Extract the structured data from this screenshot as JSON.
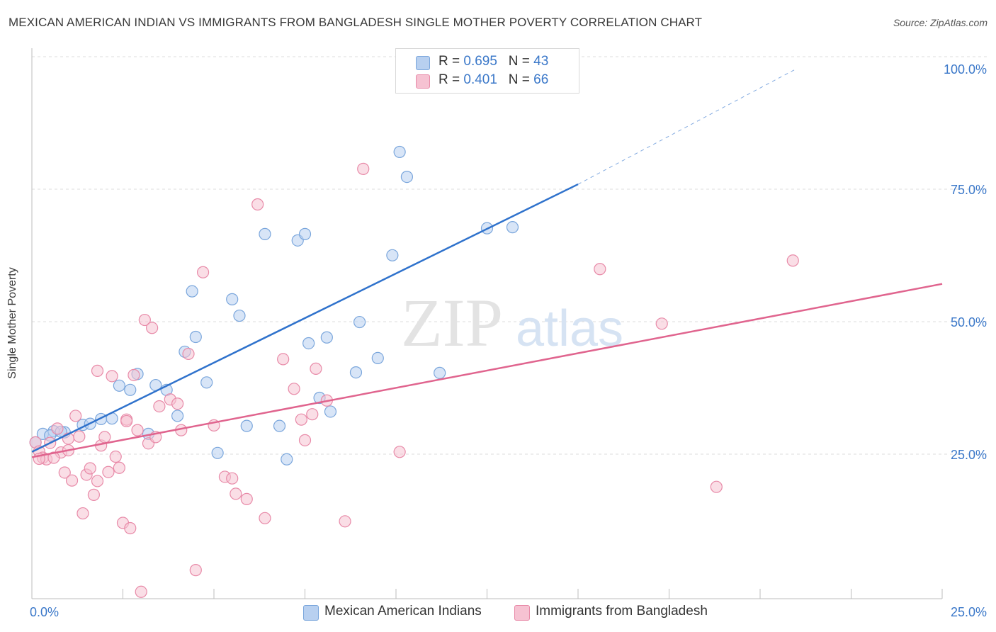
{
  "title": "MEXICAN AMERICAN INDIAN VS IMMIGRANTS FROM BANGLADESH SINGLE MOTHER POVERTY CORRELATION CHART",
  "source": "Source: ZipAtlas.com",
  "watermark": {
    "zip": "ZIP",
    "atlas": "atlas"
  },
  "stats": [
    {
      "r_label": "R = ",
      "r_value": "0.695",
      "n_label": "N = ",
      "n_value": "43"
    },
    {
      "r_label": "R = ",
      "r_value": "0.401",
      "n_label": "N = ",
      "n_value": "66"
    }
  ],
  "legend": [
    {
      "label": "Mexican American Indians"
    },
    {
      "label": "Immigrants from Bangladesh"
    }
  ],
  "colors": {
    "blue_fill": "#b8d0f0",
    "blue_stroke": "#7aa6dc",
    "blue_line": "#2f72cc",
    "pink_fill": "#f6c2d2",
    "pink_stroke": "#e88aa8",
    "pink_line": "#e0648e",
    "grid": "#dedede",
    "tick_label": "#3b78c9"
  },
  "chart_data": {
    "type": "scatter",
    "title": "MEXICAN AMERICAN INDIAN VS IMMIGRANTS FROM BANGLADESH SINGLE MOTHER POVERTY CORRELATION CHART",
    "xlabel": "",
    "ylabel": "Single Mother Poverty",
    "xlim": [
      0,
      25
    ],
    "ylim": [
      0,
      100
    ],
    "x_tick_labels": [
      {
        "value": 0,
        "label": "0.0%"
      },
      {
        "value": 25,
        "label": "25.0%"
      }
    ],
    "y_tick_labels": [
      {
        "value": 100,
        "label": "100.0%"
      },
      {
        "value": 75,
        "label": "75.0%"
      },
      {
        "value": 50,
        "label": "50.0%"
      },
      {
        "value": 25,
        "label": "25.0%"
      }
    ],
    "series": [
      {
        "name": "Mexican American Indians",
        "color": "#7aa6dc",
        "trend": {
          "x0": 0,
          "y0": 27.7,
          "x1": 15,
          "y1": 78.2,
          "dash_to_x": 21,
          "dash_to_y": 100
        },
        "points": [
          [
            0.1,
            29.5
          ],
          [
            0.3,
            31.1
          ],
          [
            0.6,
            31.6
          ],
          [
            0.9,
            31.4
          ],
          [
            1.4,
            32.8
          ],
          [
            1.6,
            33.0
          ],
          [
            1.9,
            33.9
          ],
          [
            2.4,
            40.2
          ],
          [
            2.7,
            39.4
          ],
          [
            2.9,
            42.4
          ],
          [
            3.2,
            31.1
          ],
          [
            3.4,
            40.3
          ],
          [
            3.7,
            39.4
          ],
          [
            4.0,
            34.5
          ],
          [
            4.2,
            46.6
          ],
          [
            4.4,
            58.0
          ],
          [
            4.5,
            49.4
          ],
          [
            4.8,
            40.8
          ],
          [
            5.1,
            27.5
          ],
          [
            5.5,
            56.5
          ],
          [
            5.7,
            53.4
          ],
          [
            5.9,
            32.6
          ],
          [
            6.4,
            68.8
          ],
          [
            6.8,
            32.6
          ],
          [
            7.0,
            26.3
          ],
          [
            7.3,
            67.6
          ],
          [
            7.5,
            68.8
          ],
          [
            7.6,
            48.2
          ],
          [
            7.9,
            37.9
          ],
          [
            8.1,
            49.3
          ],
          [
            8.2,
            35.3
          ],
          [
            8.9,
            42.7
          ],
          [
            9.0,
            52.2
          ],
          [
            9.5,
            45.4
          ],
          [
            9.9,
            64.8
          ],
          [
            10.1,
            84.3
          ],
          [
            10.3,
            79.6
          ],
          [
            11.2,
            42.6
          ],
          [
            12.5,
            69.9
          ],
          [
            13.2,
            70.1
          ],
          [
            0.8,
            31.5
          ],
          [
            2.2,
            34.0
          ],
          [
            0.5,
            30.8
          ]
        ]
      },
      {
        "name": "Immigrants from Bangladesh",
        "color": "#e88aa8",
        "trend": {
          "x0": 0,
          "y0": 26.7,
          "x1": 25,
          "y1": 59.4
        },
        "points": [
          [
            0.1,
            29.5
          ],
          [
            0.2,
            27.8
          ],
          [
            0.3,
            26.6
          ],
          [
            0.4,
            26.3
          ],
          [
            0.5,
            29.4
          ],
          [
            0.7,
            32.1
          ],
          [
            0.8,
            27.6
          ],
          [
            0.9,
            23.8
          ],
          [
            1.0,
            30.2
          ],
          [
            1.1,
            22.3
          ],
          [
            1.2,
            34.5
          ],
          [
            1.3,
            30.6
          ],
          [
            1.4,
            16.1
          ],
          [
            1.5,
            23.4
          ],
          [
            1.6,
            24.6
          ],
          [
            1.7,
            19.6
          ],
          [
            1.8,
            22.2
          ],
          [
            1.8,
            43.0
          ],
          [
            1.9,
            28.9
          ],
          [
            2.0,
            30.5
          ],
          [
            2.1,
            23.9
          ],
          [
            2.2,
            42.0
          ],
          [
            2.3,
            26.8
          ],
          [
            2.4,
            24.7
          ],
          [
            2.5,
            14.3
          ],
          [
            2.6,
            33.8
          ],
          [
            2.7,
            13.3
          ],
          [
            2.8,
            42.2
          ],
          [
            2.9,
            31.8
          ],
          [
            3.0,
            1.3
          ],
          [
            3.1,
            52.6
          ],
          [
            3.2,
            29.3
          ],
          [
            3.3,
            51.1
          ],
          [
            3.4,
            30.5
          ],
          [
            3.5,
            36.3
          ],
          [
            3.8,
            37.6
          ],
          [
            4.0,
            36.8
          ],
          [
            4.1,
            31.8
          ],
          [
            4.3,
            46.2
          ],
          [
            4.5,
            5.4
          ],
          [
            4.7,
            61.6
          ],
          [
            5.0,
            32.7
          ],
          [
            5.3,
            23.0
          ],
          [
            5.5,
            22.7
          ],
          [
            5.6,
            19.8
          ],
          [
            5.9,
            18.8
          ],
          [
            6.2,
            74.4
          ],
          [
            6.4,
            15.2
          ],
          [
            6.9,
            45.2
          ],
          [
            7.2,
            39.6
          ],
          [
            7.4,
            33.8
          ],
          [
            7.5,
            29.9
          ],
          [
            7.7,
            34.8
          ],
          [
            7.8,
            43.4
          ],
          [
            8.1,
            37.4
          ],
          [
            8.6,
            14.6
          ],
          [
            9.1,
            81.1
          ],
          [
            10.1,
            27.7
          ],
          [
            15.6,
            62.2
          ],
          [
            17.3,
            51.9
          ],
          [
            18.8,
            21.1
          ],
          [
            20.9,
            63.8
          ],
          [
            0.6,
            26.6
          ],
          [
            1.0,
            28.0
          ],
          [
            2.6,
            33.5
          ],
          [
            0.2,
            26.4
          ]
        ]
      }
    ]
  }
}
